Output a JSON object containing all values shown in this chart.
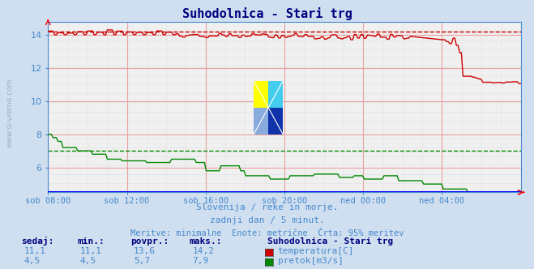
{
  "title": "Suhodolnica - Stari trg",
  "title_color": "#000080",
  "bg_color": "#d0dff0",
  "plot_bg_color": "#f0f0f0",
  "grid_color": "#e8a0a0",
  "minor_grid_color": "#e0e0e0",
  "x_labels": [
    "sob 08:00",
    "sob 12:00",
    "sob 16:00",
    "sob 20:00",
    "ned 00:00",
    "ned 04:00"
  ],
  "x_ticks_norm": [
    0.0,
    0.1667,
    0.3333,
    0.5,
    0.6667,
    0.8333
  ],
  "ylim": [
    4.5,
    14.8
  ],
  "yticks": [
    6,
    8,
    10,
    12,
    14
  ],
  "temp_color": "#cc0000",
  "flow_color": "#008800",
  "temp_avg": 14.2,
  "flow_avg": 7.0,
  "subtitle1": "Slovenija / reke in morje.",
  "subtitle2": "zadnji dan / 5 minut.",
  "subtitle3": "Meritve: minimalne  Enote: metrične  Črta: 95% meritev",
  "subtitle_color": "#4488cc",
  "legend_title": "Suhodolnica - Stari trg",
  "legend_title_color": "#000080",
  "table_headers": [
    "sedaj:",
    "min.:",
    "povpr.:",
    "maks.:"
  ],
  "temp_row": [
    "11,1",
    "11,1",
    "13,6",
    "14,2"
  ],
  "flow_row": [
    "4,5",
    "4,5",
    "5,7",
    "7,9"
  ],
  "temp_label": "temperatura[C]",
  "flow_label": "pretok[m3/s]",
  "axis_color": "#4488cc",
  "spine_color": "#4488cc",
  "watermark_text": "www.si-vreme.com",
  "watermark_color": "#8899aa"
}
